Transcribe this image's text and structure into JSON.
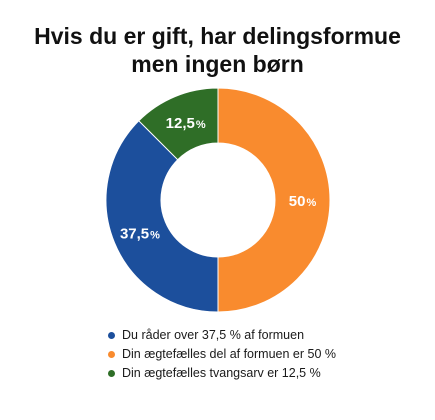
{
  "colors": {
    "slice_blue": "#1c4f9c",
    "slice_orange": "#f98b2e",
    "slice_green": "#2f6e27"
  },
  "chart_data": {
    "type": "pie",
    "style": "donut",
    "title": "Hvis du er gift, har delingsformue men ingen børn",
    "title_lines": [
      "Hvis du er gift, har delingsformue",
      "men ingen børn"
    ],
    "slices": [
      {
        "value": 50,
        "label_number": "50",
        "label_unit": "%",
        "color": "#f98b2e",
        "legend": "Din ægtefælles del af formuen er 50 %"
      },
      {
        "value": 37.5,
        "label_number": "37,5",
        "label_unit": "%",
        "color": "#1c4f9c",
        "legend": "Du råder over 37,5 % af formuen"
      },
      {
        "value": 12.5,
        "label_number": "12,5",
        "label_unit": "%",
        "color": "#2f6e27",
        "legend": "Din ægtefælles tvangsarv er 12,5 %"
      }
    ],
    "legend_order": [
      1,
      0,
      2
    ],
    "legend_placement": "bottom"
  }
}
